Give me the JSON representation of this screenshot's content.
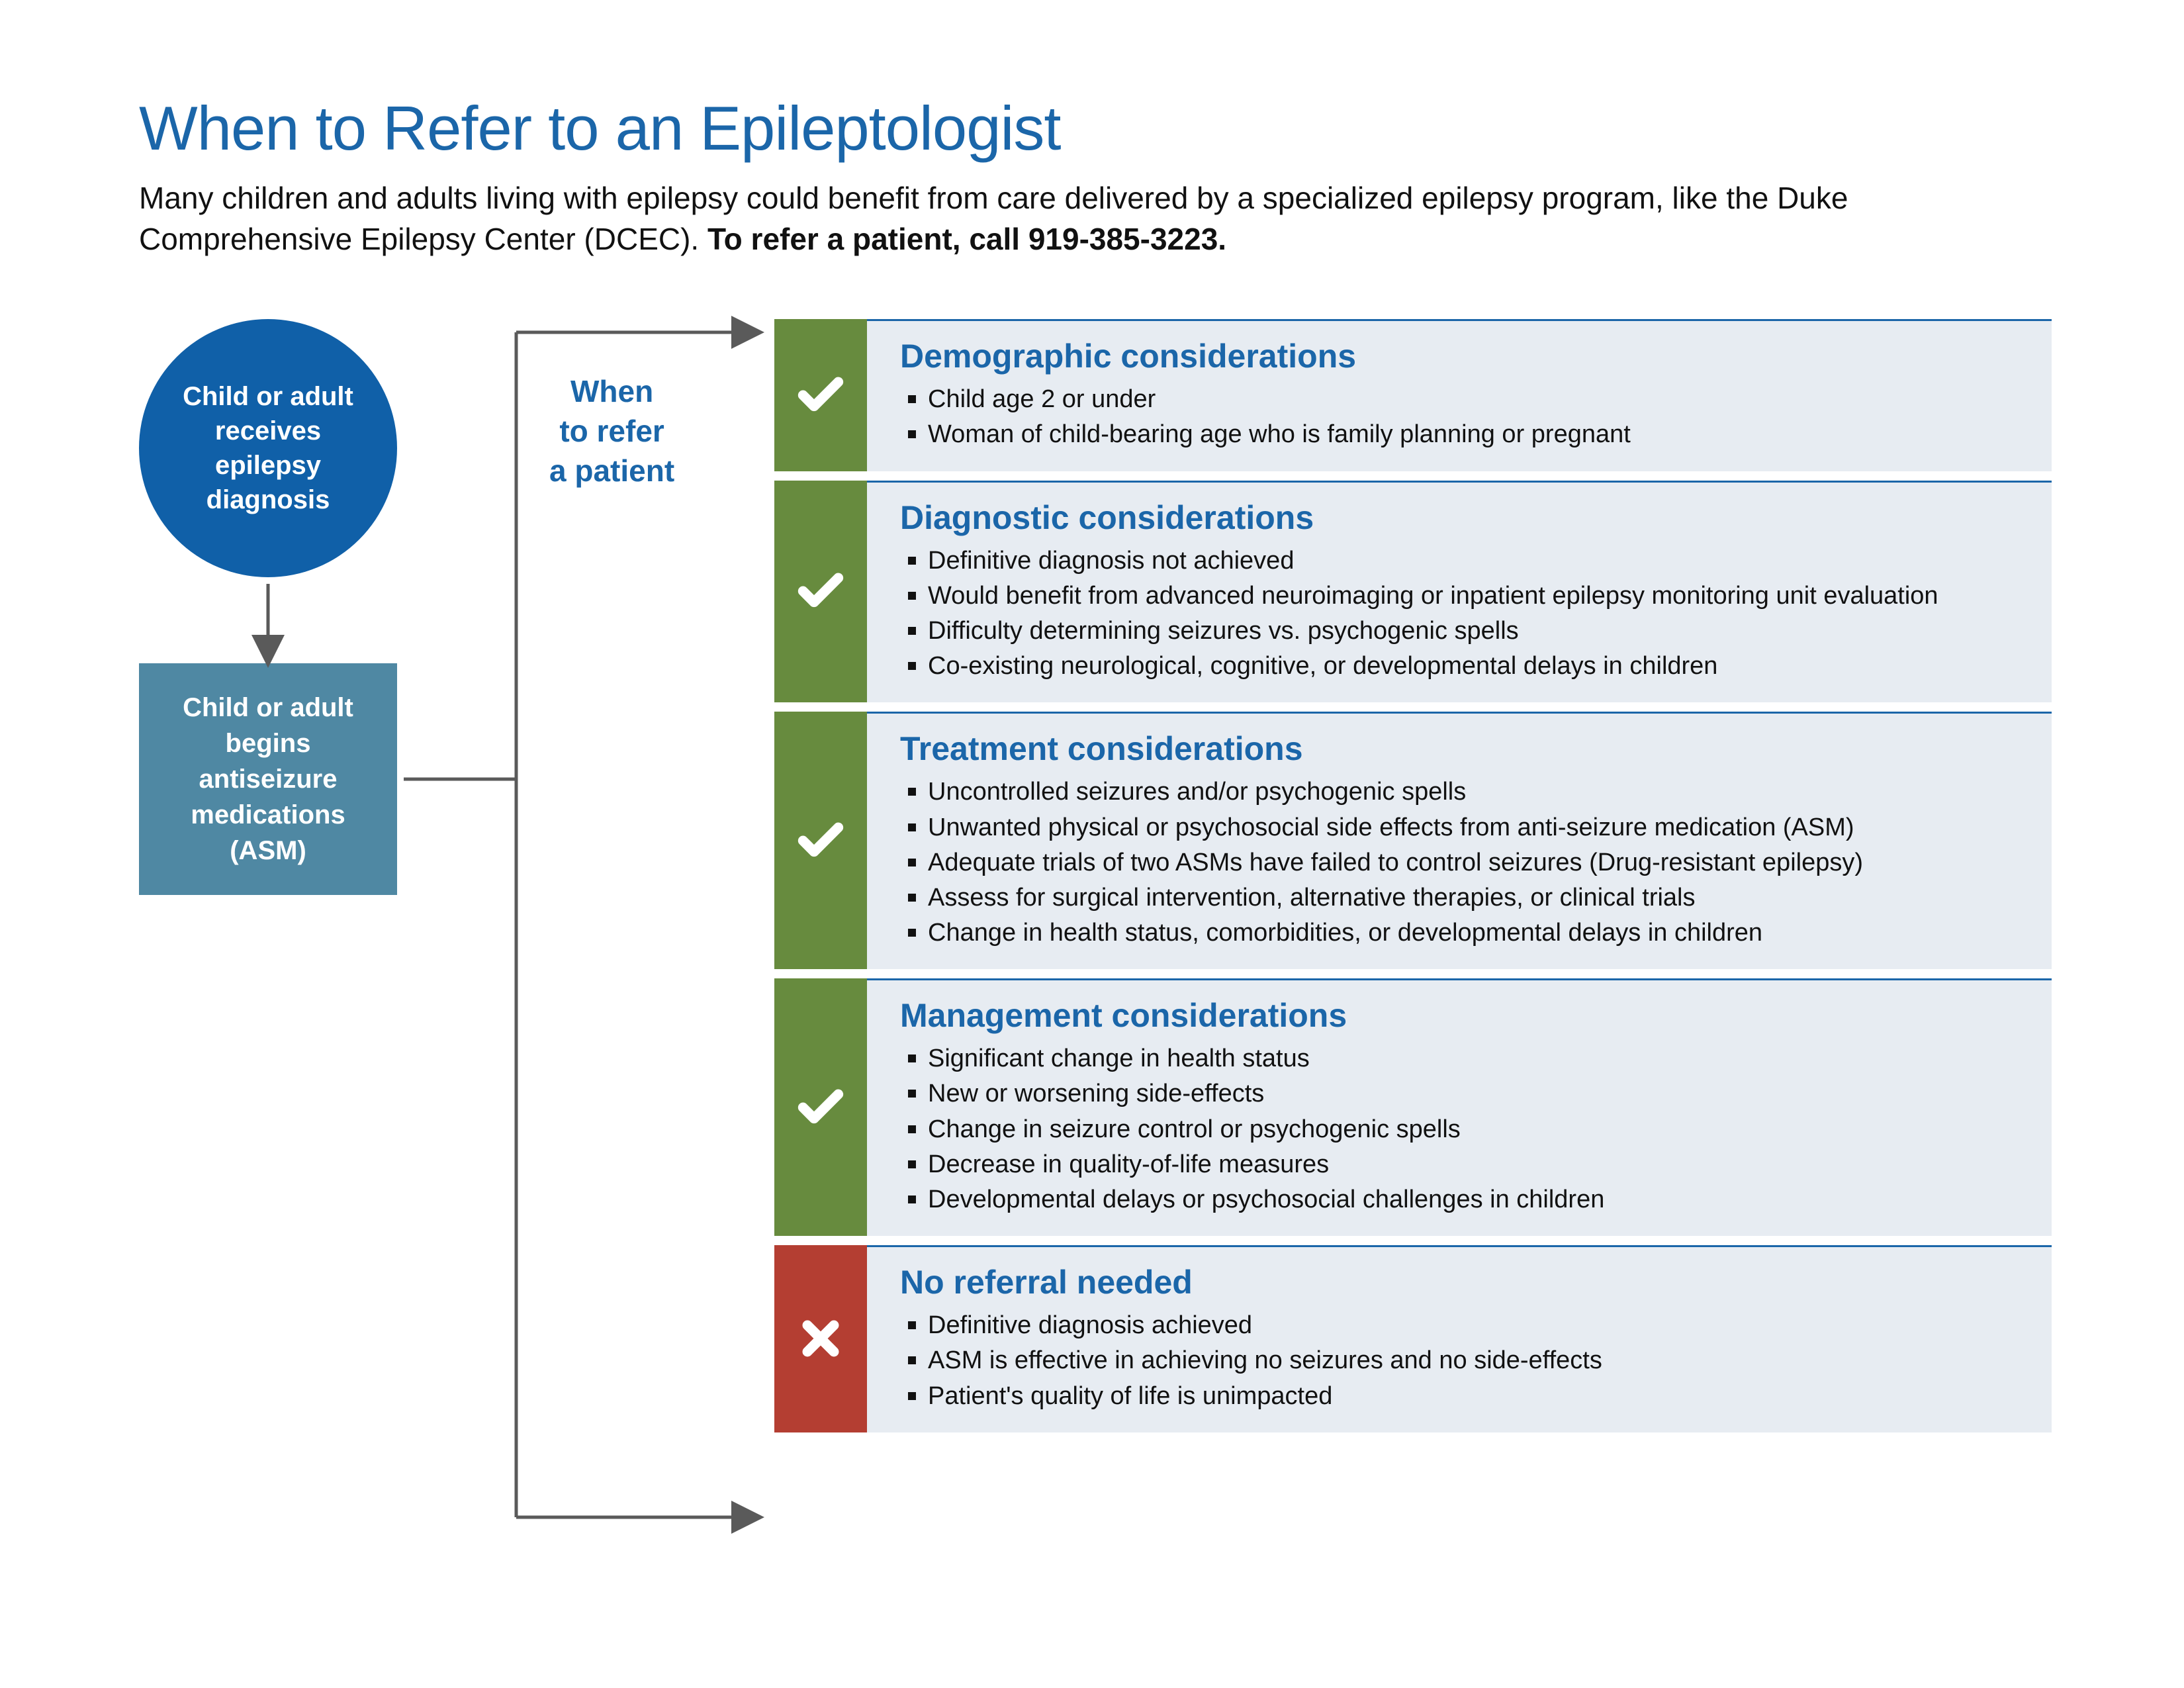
{
  "title": "When to Refer to an Epileptologist",
  "subtitle_plain": "Many children and adults living with epilepsy could benefit from care delivered by a specialized epilepsy program, like the Duke Comprehensive Epilepsy Center (DCEC). ",
  "subtitle_bold": "To refer a patient, call 919-385-3223.",
  "flow": {
    "node1": "Child or adult receives epilepsy diagnosis",
    "node2": "Child or adult begins antiseizure medications (ASM)",
    "branch_label_l1": "When",
    "branch_label_l2": "to refer",
    "branch_label_l3": "a patient"
  },
  "colors": {
    "title": "#1b66a9",
    "circle_bg": "#1060a8",
    "square_bg": "#4f88a3",
    "panel_bg": "#e7ecf2",
    "panel_border": "#1b66a9",
    "green": "#678b3e",
    "red": "#b43e32",
    "arrow": "#5a5a5a"
  },
  "panels": [
    {
      "icon": "check",
      "title": "Demographic considerations",
      "items": [
        "Child age 2 or under",
        "Woman of child-bearing age who is family planning or pregnant"
      ]
    },
    {
      "icon": "check",
      "title": "Diagnostic considerations",
      "items": [
        "Definitive diagnosis not achieved",
        "Would benefit from advanced neuroimaging or inpatient epilepsy monitoring unit evaluation",
        "Difficulty determining seizures vs. psychogenic spells",
        "Co-existing neurological, cognitive, or developmental delays in children"
      ]
    },
    {
      "icon": "check",
      "title": "Treatment considerations",
      "items": [
        "Uncontrolled seizures and/or psychogenic spells",
        "Unwanted physical or psychosocial side effects from anti-seizure medication (ASM)",
        "Adequate trials of two ASMs have failed to control seizures (Drug-resistant epilepsy)",
        "Assess for surgical intervention, alternative therapies, or clinical trials",
        "Change in health status, comorbidities, or developmental delays in children"
      ]
    },
    {
      "icon": "check",
      "title": "Management considerations",
      "items": [
        "Significant change in health status",
        "New or worsening side-effects",
        "Change in seizure control or psychogenic spells",
        "Decrease in quality-of-life measures",
        "Developmental delays or psychosocial challenges in children"
      ]
    },
    {
      "icon": "cross",
      "title": "No referral needed",
      "items": [
        "Definitive diagnosis achieved",
        "ASM is effective in achieving no seizures and no side-effects",
        "Patient's quality of life is unimpacted"
      ]
    }
  ]
}
